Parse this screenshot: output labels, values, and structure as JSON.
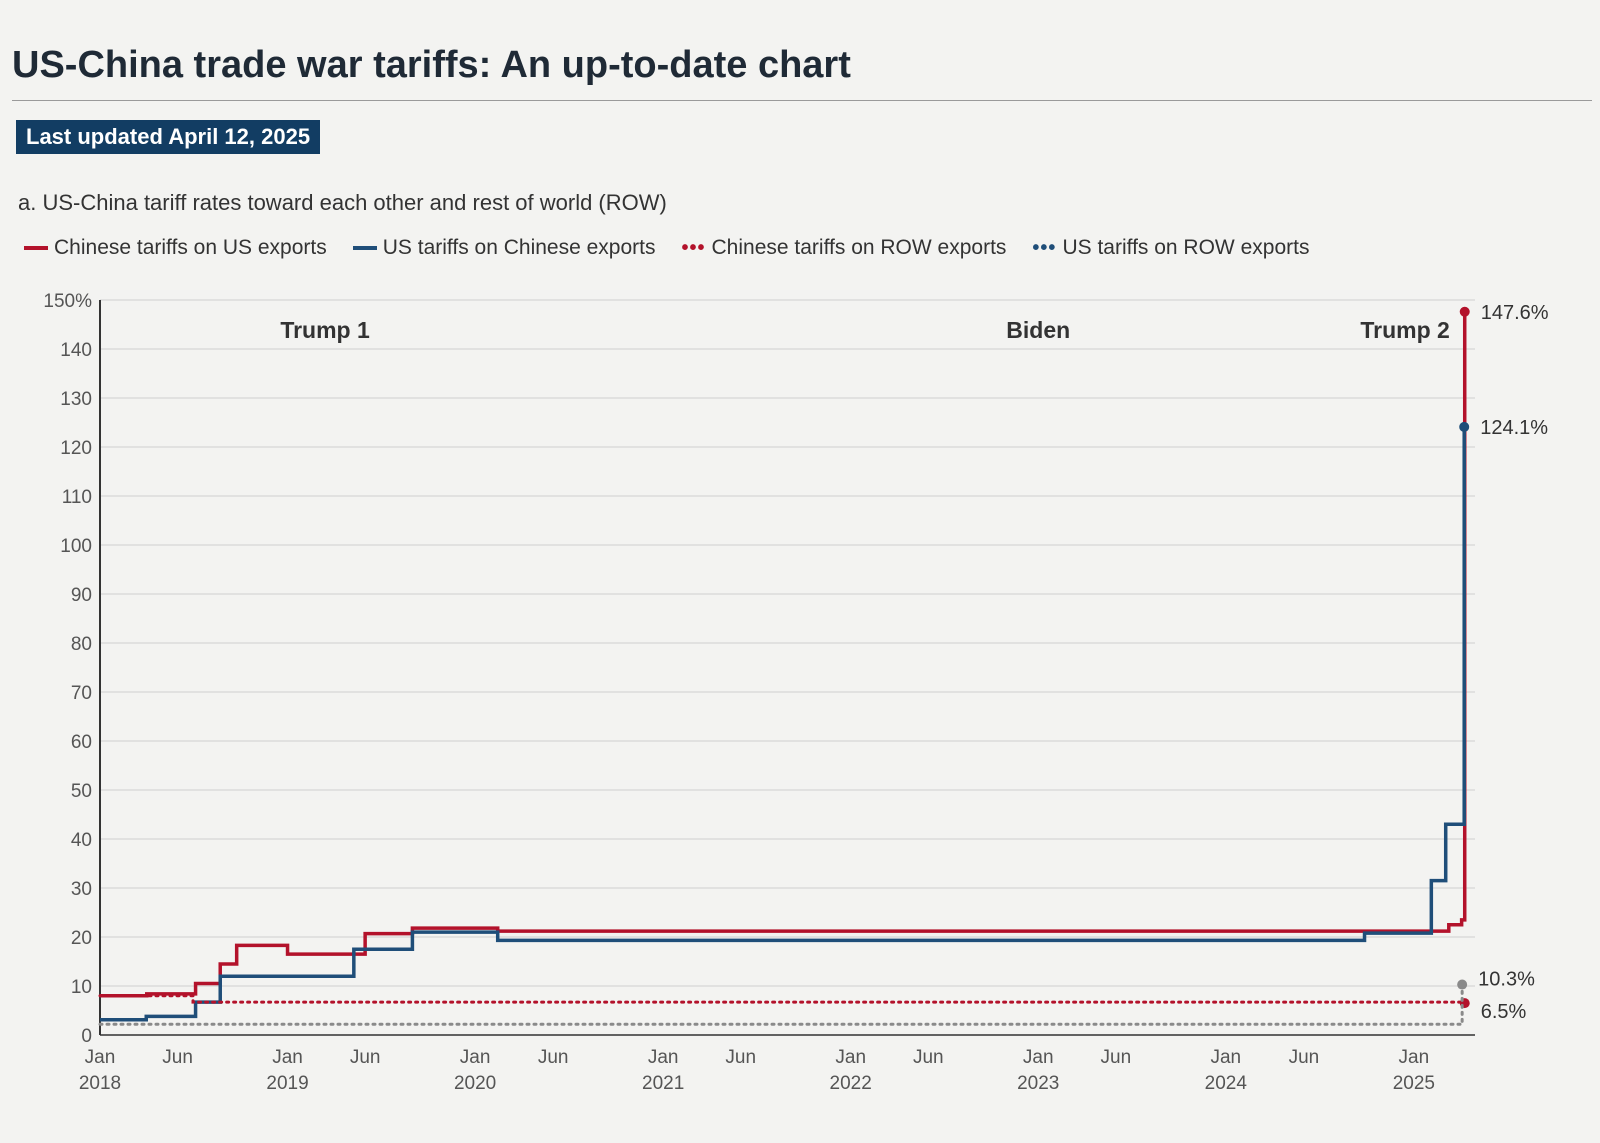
{
  "header": {
    "title": "US-China trade war tariffs: An up-to-date chart",
    "badge": "Last updated April 12, 2025",
    "subtitle": "a. US-China tariff rates toward each other and rest of world (ROW)"
  },
  "colors": {
    "china": "#b3122b",
    "us": "#1f4e79",
    "us_row": "#8a8a8a"
  },
  "legend": [
    {
      "label": "Chinese tariffs on US exports",
      "style": "solid",
      "color": "#b3122b"
    },
    {
      "label": "US tariffs on Chinese exports",
      "style": "solid",
      "color": "#1f4e79"
    },
    {
      "label": "Chinese tariffs on ROW exports",
      "style": "dotted",
      "color": "#b3122b"
    },
    {
      "label": "US tariffs on ROW exports",
      "style": "dotted",
      "color": "#1f4e79"
    }
  ],
  "chart_data": {
    "type": "line",
    "step": true,
    "title": "US-China trade war tariffs: An up-to-date chart",
    "subtitle": "a. US-China tariff rates toward each other and rest of world (ROW)",
    "ylim": [
      0,
      150
    ],
    "yticks": [
      0,
      10,
      20,
      30,
      40,
      50,
      60,
      70,
      80,
      90,
      100,
      110,
      120,
      130,
      140,
      150
    ],
    "ytick_labels": [
      "0",
      "10",
      "20",
      "30",
      "40",
      "50",
      "60",
      "70",
      "80",
      "90",
      "100",
      "110",
      "120",
      "130",
      "140",
      "150%"
    ],
    "xlim": [
      "2018-01-01",
      "2025-04-30"
    ],
    "xticks": [
      {
        "date": "2018-01-01",
        "label": "Jan",
        "year": "2018"
      },
      {
        "date": "2018-06-01",
        "label": "Jun",
        "year": ""
      },
      {
        "date": "2019-01-01",
        "label": "Jan",
        "year": "2019"
      },
      {
        "date": "2019-06-01",
        "label": "Jun",
        "year": ""
      },
      {
        "date": "2020-01-01",
        "label": "Jan",
        "year": "2020"
      },
      {
        "date": "2020-06-01",
        "label": "Jun",
        "year": ""
      },
      {
        "date": "2021-01-01",
        "label": "Jan",
        "year": "2021"
      },
      {
        "date": "2021-06-01",
        "label": "Jun",
        "year": ""
      },
      {
        "date": "2022-01-01",
        "label": "Jan",
        "year": "2022"
      },
      {
        "date": "2022-06-01",
        "label": "Jun",
        "year": ""
      },
      {
        "date": "2023-01-01",
        "label": "Jan",
        "year": "2023"
      },
      {
        "date": "2023-06-01",
        "label": "Jun",
        "year": ""
      },
      {
        "date": "2024-01-01",
        "label": "Jan",
        "year": "2024"
      },
      {
        "date": "2024-06-01",
        "label": "Jun",
        "year": ""
      },
      {
        "date": "2025-01-01",
        "label": "Jan",
        "year": "2025"
      }
    ],
    "grid": true,
    "legend_position": "top",
    "periods": [
      {
        "label": "Trump 1",
        "date": "2019-03-15"
      },
      {
        "label": "Biden",
        "date": "2023-01-01"
      },
      {
        "label": "Trump 2",
        "date": "2024-12-15"
      }
    ],
    "series": [
      {
        "name": "Chinese tariffs on US exports",
        "style": "solid",
        "color": "#b3122b",
        "points": [
          [
            "2018-01-01",
            8.0
          ],
          [
            "2018-04-02",
            8.4
          ],
          [
            "2018-07-06",
            10.5
          ],
          [
            "2018-08-23",
            14.5
          ],
          [
            "2018-09-24",
            18.3
          ],
          [
            "2019-01-01",
            16.5
          ],
          [
            "2019-06-01",
            20.7
          ],
          [
            "2019-09-01",
            21.8
          ],
          [
            "2020-02-14",
            21.2
          ],
          [
            "2025-02-10",
            21.2
          ],
          [
            "2025-03-10",
            22.5
          ],
          [
            "2025-04-04",
            23.5
          ],
          [
            "2025-04-10",
            147.6
          ]
        ],
        "end_label": "147.6%"
      },
      {
        "name": "US tariffs on Chinese exports",
        "style": "solid",
        "color": "#1f4e79",
        "points": [
          [
            "2018-01-01",
            3.1
          ],
          [
            "2018-04-01",
            3.8
          ],
          [
            "2018-07-06",
            6.7
          ],
          [
            "2018-08-23",
            12.0
          ],
          [
            "2018-09-24",
            12.0
          ],
          [
            "2019-05-10",
            17.5
          ],
          [
            "2019-09-01",
            21.0
          ],
          [
            "2020-02-14",
            19.3
          ],
          [
            "2024-09-27",
            20.8
          ],
          [
            "2025-02-04",
            31.5
          ],
          [
            "2025-03-04",
            43.0
          ],
          [
            "2025-04-05",
            43.0
          ],
          [
            "2025-04-09",
            124.1
          ]
        ],
        "end_label": "124.1%"
      },
      {
        "name": "Chinese tariffs on ROW exports",
        "style": "dotted",
        "color": "#b3122b",
        "points": [
          [
            "2018-01-01",
            8.0
          ],
          [
            "2018-07-01",
            6.7
          ],
          [
            "2025-04-10",
            6.5
          ]
        ],
        "end_label": "6.5%"
      },
      {
        "name": "US tariffs on ROW exports",
        "style": "dotted",
        "color": "#8a8a8a",
        "points": [
          [
            "2018-01-01",
            2.2
          ],
          [
            "2025-04-01",
            2.2
          ],
          [
            "2025-04-05",
            10.3
          ]
        ],
        "end_label": "10.3%"
      }
    ]
  }
}
